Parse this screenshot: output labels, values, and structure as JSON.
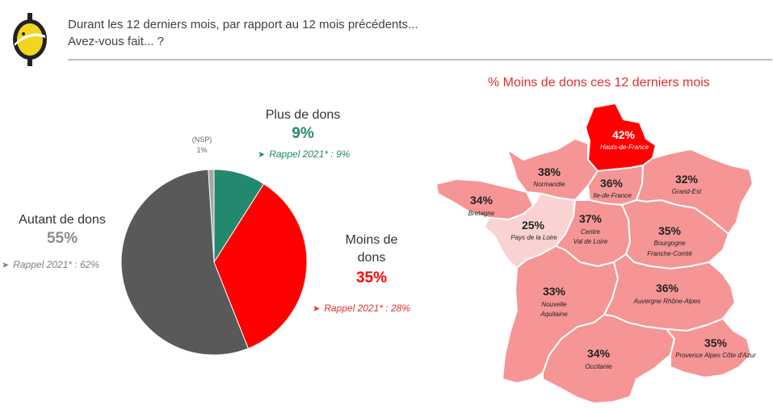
{
  "header": {
    "question_line1": "Durant les 12 derniers mois, par rapport au 12 mois précédents...",
    "question_line2": "Avez-vous fait... ?"
  },
  "chart_data": [
    {
      "type": "pie",
      "title": "",
      "slices": [
        {
          "name": "Plus de dons",
          "value": 9,
          "label": "9%",
          "rappel": "Rappel 2021* : 9%",
          "color": "#22896e"
        },
        {
          "name": "Moins de dons",
          "value": 35,
          "label": "35%",
          "rappel": "Rappel 2021* : 28%",
          "color": "#ff0000"
        },
        {
          "name": "Autant de dons",
          "value": 55,
          "label": "55%",
          "rappel": "Rappel 2021* : 62%",
          "color": "#595959"
        },
        {
          "name": "(NSP)",
          "value": 1,
          "label": "1%",
          "rappel": "",
          "color": "#a6a6a6"
        }
      ]
    },
    {
      "type": "choropleth-map",
      "title": "% Moins de dons ces 12 derniers mois",
      "regions": [
        {
          "name": "Hauts-de-France",
          "value": 42,
          "label": "42%"
        },
        {
          "name": "Normandie",
          "value": 38,
          "label": "38%"
        },
        {
          "name": "Ile-de-France",
          "value": 36,
          "label": "36%"
        },
        {
          "name": "Grand-Est",
          "value": 32,
          "label": "32%"
        },
        {
          "name": "Bretagne",
          "value": 34,
          "label": "34%"
        },
        {
          "name": "Pays de la Loire",
          "value": 25,
          "label": "25%"
        },
        {
          "name": "Centre Val de Loire",
          "value": 37,
          "label": "37%"
        },
        {
          "name": "Bourgogne Franche-Comté",
          "value": 35,
          "label": "35%"
        },
        {
          "name": "Nouvelle Aquitaine",
          "value": 33,
          "label": "33%"
        },
        {
          "name": "Auvergne Rhône-Alpes",
          "value": 36,
          "label": "36%"
        },
        {
          "name": "Occitanie",
          "value": 34,
          "label": "34%"
        },
        {
          "name": "Provence Alpes Côte d'Azur",
          "value": 35,
          "label": "35%"
        }
      ]
    }
  ],
  "map_labels": {
    "hdf_name": "Hauts-de-France",
    "nor_name": "Normandie",
    "idf_name": "Ile-de-France",
    "ge_name": "Grand-Est",
    "bre_name": "Bretagne",
    "pdl_name": "Pays de la Loire",
    "cvl_name1": "Centre",
    "cvl_name2": "Val de Loire",
    "bfc_name1": "Bourgogne",
    "bfc_name2": "Franche-Comté",
    "na_name1": "Nouvelle",
    "na_name2": "Aquitaine",
    "ara_name": "Auvergne Rhône-Alpes",
    "occ_name": "Occitanie",
    "paca_name": "Provence Alpes Côte d'Azur"
  },
  "pie_labels": {
    "moins_line1": "Moins de",
    "moins_line2": "dons"
  },
  "colors": {
    "region_default": "#f59595",
    "region_max": "#ff0000",
    "region_min": "#fad2d2",
    "title_red": "#e0302e",
    "logo_yellow": "#f2d61e"
  }
}
